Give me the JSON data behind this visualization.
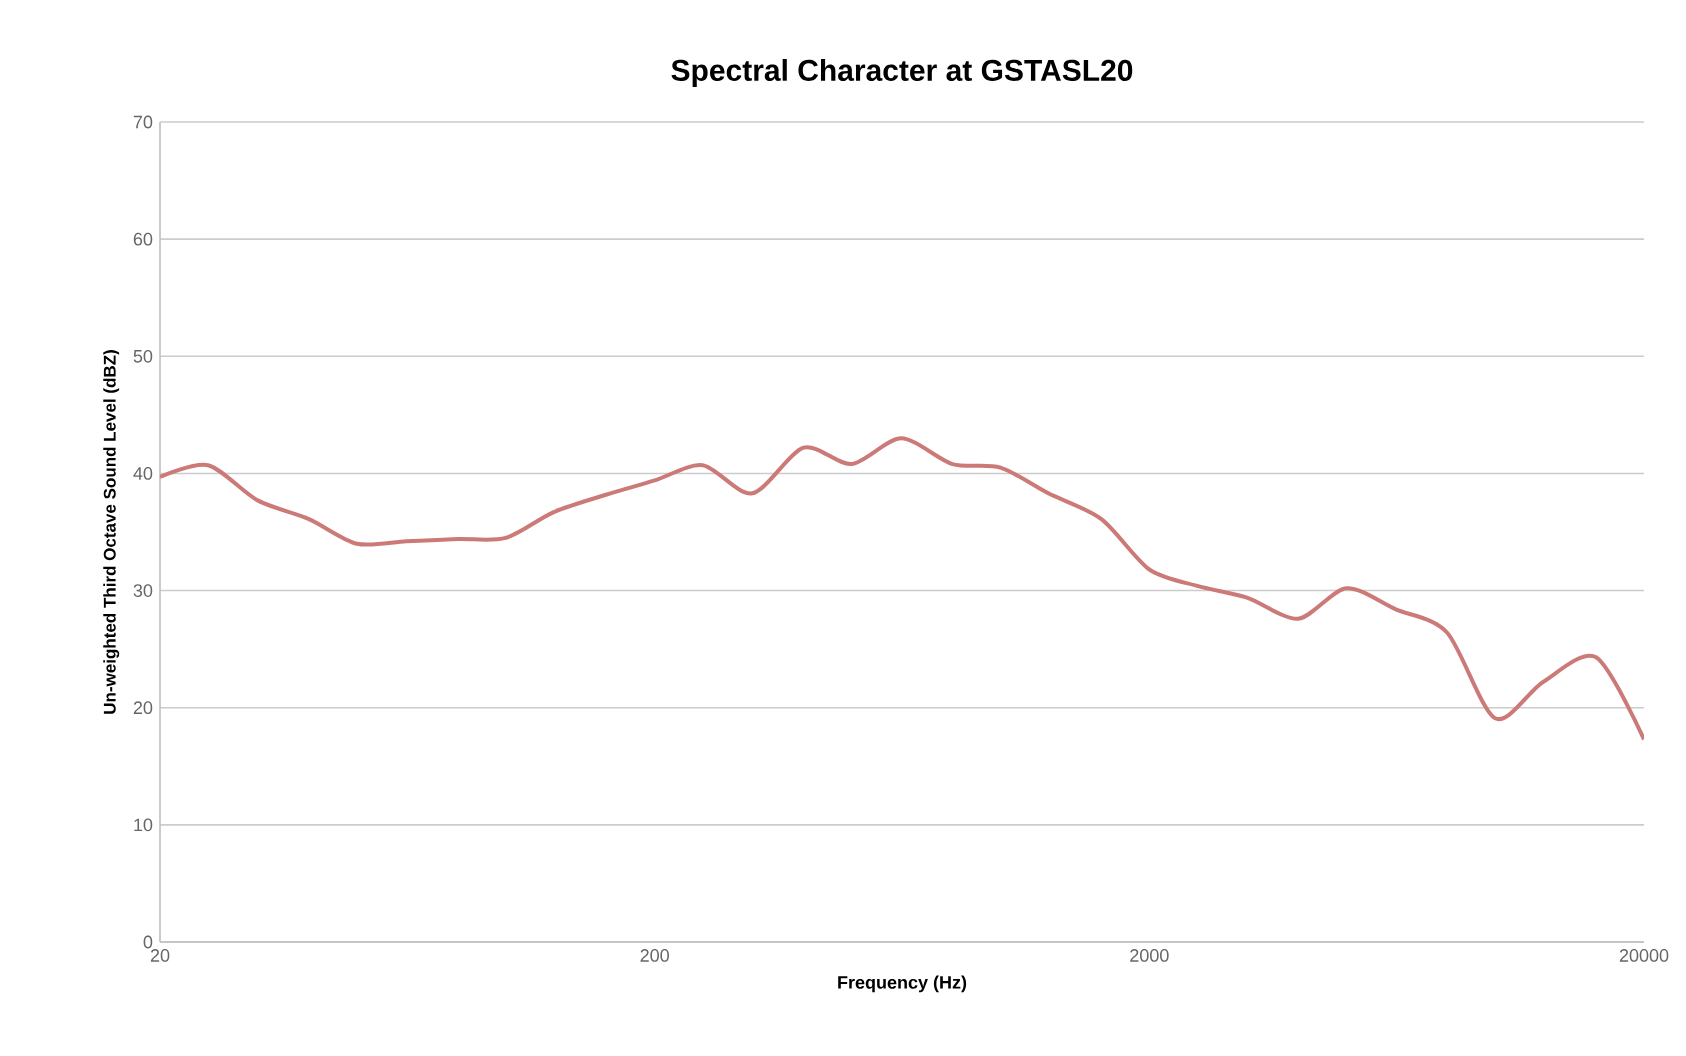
{
  "chart_data": {
    "type": "line",
    "title": "Spectral Character at GSTASL20",
    "xlabel": "Frequency (Hz)",
    "ylabel": "Un-weighted Third Octave Sound Level (dBZ)",
    "x": [
      20,
      25,
      31.5,
      40,
      50,
      63,
      80,
      100,
      125,
      160,
      200,
      250,
      315,
      400,
      500,
      630,
      800,
      1000,
      1250,
      1600,
      2000,
      2500,
      3150,
      4000,
      5000,
      6300,
      8000,
      10000,
      12500,
      16000,
      20000
    ],
    "series": [
      {
        "color": "#cc7a78",
        "values": [
          39.7,
          40.7,
          37.7,
          36.1,
          34.0,
          34.2,
          34.4,
          34.5,
          36.7,
          38.2,
          39.4,
          40.7,
          38.3,
          42.2,
          40.8,
          43.0,
          40.8,
          40.5,
          38.3,
          36.1,
          31.8,
          30.4,
          29.4,
          27.6,
          30.2,
          28.4,
          26.4,
          19.1,
          22.2,
          24.3,
          17.3
        ]
      }
    ],
    "log": "x",
    "xlim": [
      20,
      20000
    ],
    "xticks": [
      20,
      200,
      2000,
      20000
    ],
    "ylim": [
      0,
      70
    ],
    "yticks": [
      0,
      10,
      20,
      30,
      40,
      50,
      60,
      70
    ],
    "grid": "y",
    "marker": "none",
    "line_style": "solid"
  }
}
